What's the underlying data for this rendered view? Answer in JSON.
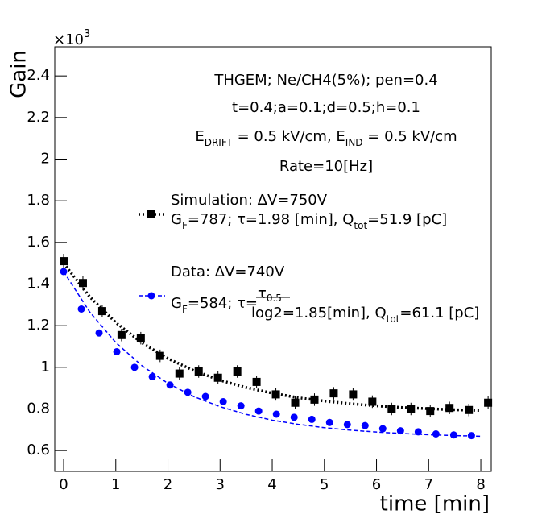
{
  "chart_data": {
    "type": "scatter",
    "y_label": "Gain",
    "x_label": "time [min]",
    "y_exponent": [
      "×10",
      "3"
    ],
    "xlim": [
      -0.17,
      8.2
    ],
    "ylim": [
      0.5,
      2.54
    ],
    "xticks": [
      0,
      1,
      2,
      3,
      4,
      5,
      6,
      7,
      8
    ],
    "yticks": [
      0.6,
      0.8,
      1,
      1.2,
      1.4,
      1.6,
      1.8,
      2,
      2.2,
      2.4
    ],
    "annotations": [
      [
        {
          "text": "THGEM; Ne/CH4(5%); pen=0.4"
        }
      ],
      [
        {
          "text": "t=0.4;a=0.1;d=0.5;h=0.1"
        }
      ],
      [
        {
          "text": "E"
        },
        {
          "text": "DRIFT",
          "sub": true
        },
        {
          "text": " = 0.5 kV/cm, E"
        },
        {
          "text": "IND",
          "sub": true
        },
        {
          "text": " = 0.5 kV/cm"
        }
      ],
      [
        {
          "text": "Rate=10[Hz]"
        }
      ]
    ],
    "fit_x": [
      0,
      0.5,
      1,
      1.5,
      2,
      2.5,
      3,
      3.5,
      4,
      4.5,
      5,
      5.5,
      6,
      6.5,
      7,
      7.5,
      8
    ],
    "series": [
      {
        "name": "Simulation: ΔV=750V",
        "color": "#000000",
        "marker": "square",
        "detail": [
          {
            "text": "G"
          },
          {
            "text": "F",
            "sub": true
          },
          {
            "text": "=787; τ=1.98 [min], Q"
          },
          {
            "text": "tot",
            "sub": true
          },
          {
            "text": "=51.9 [pC]"
          }
        ],
        "x": [
          0,
          0.37,
          0.74,
          1.11,
          1.48,
          1.85,
          2.22,
          2.59,
          2.96,
          3.33,
          3.7,
          4.07,
          4.44,
          4.81,
          5.18,
          5.55,
          5.92,
          6.29,
          6.66,
          7.03,
          7.4,
          7.77,
          8.14
        ],
        "values": [
          1.51,
          1.405,
          1.27,
          1.155,
          1.14,
          1.055,
          0.97,
          0.98,
          0.95,
          0.98,
          0.93,
          0.87,
          0.83,
          0.845,
          0.875,
          0.87,
          0.835,
          0.8,
          0.8,
          0.79,
          0.805,
          0.795,
          0.83
        ],
        "errors": [
          0.035,
          0.035,
          0.03,
          0.03,
          0.03,
          0.03,
          0.03,
          0.03,
          0.03,
          0.03,
          0.03,
          0.03,
          0.03,
          0.03,
          0.03,
          0.03,
          0.03,
          0.03,
          0.03,
          0.03,
          0.03,
          0.03,
          0.03
        ],
        "fit": [
          1.5,
          1.339,
          1.215,
          1.118,
          1.042,
          0.984,
          0.938,
          0.903,
          0.876,
          0.854,
          0.838,
          0.825,
          0.815,
          0.807,
          0.801,
          0.796,
          0.793
        ]
      },
      {
        "name": "Data: ΔV=740V",
        "color": "#0000ff",
        "marker": "circle",
        "detail": [
          {
            "text": "G"
          },
          {
            "text": "F",
            "sub": true
          },
          {
            "text": "=584; τ="
          },
          {
            "frac": [
              "τ",
              "0.5",
              "log2"
            ]
          },
          {
            "text": "=1.85[min], Q"
          },
          {
            "text": "tot",
            "sub": true
          },
          {
            "text": "=61.1 [pC]"
          }
        ],
        "x": [
          0,
          0.34,
          0.68,
          1.02,
          1.36,
          1.7,
          2.04,
          2.38,
          2.72,
          3.06,
          3.4,
          3.74,
          4.08,
          4.42,
          4.76,
          5.1,
          5.44,
          5.78,
          6.12,
          6.46,
          6.8,
          7.14,
          7.48,
          7.82
        ],
        "values": [
          1.46,
          1.28,
          1.165,
          1.075,
          1.0,
          0.955,
          0.915,
          0.88,
          0.86,
          0.835,
          0.815,
          0.79,
          0.775,
          0.76,
          0.75,
          0.735,
          0.725,
          0.72,
          0.705,
          0.695,
          0.69,
          0.68,
          0.675,
          0.672
        ],
        "fit": [
          1.46,
          1.266,
          1.119,
          1.008,
          0.923,
          0.859,
          0.811,
          0.774,
          0.746,
          0.726,
          0.71,
          0.698,
          0.689,
          0.682,
          0.676,
          0.672,
          0.669
        ]
      }
    ]
  }
}
